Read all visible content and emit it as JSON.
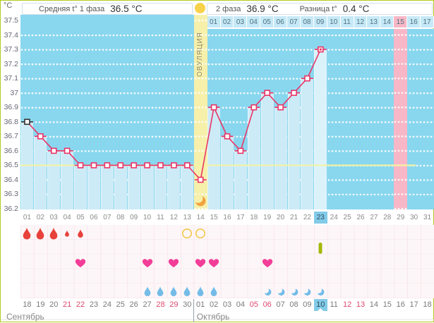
{
  "header": {
    "unit_label": "°C",
    "phase1_label": "Средняя t° 1 фаза",
    "phase1_value": "36.5 °C",
    "phase2_label": "2 фаза",
    "phase2_value": "36.9 °C",
    "diff_label": "Разница t°",
    "diff_value": "0.4 °C"
  },
  "ovulation_band": {
    "label": "ОВУЛЯЦИЯ",
    "cycle_day": 14
  },
  "chart_data": {
    "type": "line",
    "title": "Basal body temperature by cycle day",
    "ylabel": "°C",
    "ylim": [
      36.2,
      37.5
    ],
    "ytick_step": 0.1,
    "grid": true,
    "coverline": 36.5,
    "cycle_days": [
      1,
      2,
      3,
      4,
      5,
      6,
      7,
      8,
      9,
      10,
      11,
      12,
      13,
      14,
      15,
      16,
      17,
      18,
      19,
      20,
      21,
      22,
      23
    ],
    "temps": [
      36.8,
      36.7,
      36.6,
      36.6,
      36.5,
      36.5,
      36.5,
      36.5,
      36.5,
      36.5,
      36.5,
      36.5,
      36.5,
      36.4,
      36.9,
      36.7,
      36.6,
      36.9,
      37.0,
      36.9,
      37.0,
      37.1,
      37.3
    ],
    "ovulation_cycle_day": 14,
    "predicted_period_cycle_day": 29,
    "current_cycle_day": 23,
    "phase2_day_labels": [
      "01",
      "02",
      "03",
      "04",
      "05",
      "06",
      "07",
      "08",
      "09",
      "10",
      "11",
      "12",
      "13",
      "14",
      "15",
      "16",
      "17"
    ],
    "phase2_period_day_label": "15"
  },
  "bottom": {
    "cycle_day_labels": [
      "01",
      "02",
      "03",
      "04",
      "05",
      "06",
      "07",
      "08",
      "09",
      "10",
      "11",
      "12",
      "13",
      "14",
      "15",
      "16",
      "17",
      "18",
      "19",
      "20",
      "21",
      "22",
      "23",
      "24",
      "25",
      "26",
      "27",
      "28",
      "29",
      "30",
      "31"
    ],
    "menstruation_days": [
      {
        "day": 1,
        "size": "large"
      },
      {
        "day": 2,
        "size": "large"
      },
      {
        "day": 3,
        "size": "large"
      },
      {
        "day": 4,
        "size": "small"
      },
      {
        "day": 5,
        "size": "medium"
      }
    ],
    "ovulation_test_days": [
      13,
      14
    ],
    "medication_day": 23,
    "intimacy_days": [
      5,
      10,
      12,
      14,
      15,
      19
    ],
    "discharge_days": [
      10,
      11,
      12,
      13,
      14,
      15
    ],
    "discharge_light_days": [
      19,
      20,
      21,
      22,
      23
    ],
    "dates": [
      {
        "label": "18",
        "weekend": false,
        "today": false
      },
      {
        "label": "19",
        "weekend": false,
        "today": false
      },
      {
        "label": "20",
        "weekend": false,
        "today": false
      },
      {
        "label": "21",
        "weekend": true,
        "today": false
      },
      {
        "label": "22",
        "weekend": true,
        "today": false
      },
      {
        "label": "23",
        "weekend": false,
        "today": false
      },
      {
        "label": "24",
        "weekend": false,
        "today": false
      },
      {
        "label": "25",
        "weekend": false,
        "today": false
      },
      {
        "label": "26",
        "weekend": false,
        "today": false
      },
      {
        "label": "27",
        "weekend": false,
        "today": false
      },
      {
        "label": "28",
        "weekend": true,
        "today": false
      },
      {
        "label": "29",
        "weekend": true,
        "today": false
      },
      {
        "label": "30",
        "weekend": false,
        "today": false
      },
      {
        "label": "01",
        "weekend": false,
        "today": false
      },
      {
        "label": "02",
        "weekend": false,
        "today": false
      },
      {
        "label": "03",
        "weekend": false,
        "today": false
      },
      {
        "label": "04",
        "weekend": false,
        "today": false
      },
      {
        "label": "05",
        "weekend": true,
        "today": false
      },
      {
        "label": "06",
        "weekend": true,
        "today": false
      },
      {
        "label": "07",
        "weekend": false,
        "today": false
      },
      {
        "label": "08",
        "weekend": false,
        "today": false
      },
      {
        "label": "09",
        "weekend": false,
        "today": false
      },
      {
        "label": "10",
        "weekend": false,
        "today": true
      },
      {
        "label": "11",
        "weekend": false,
        "today": false
      },
      {
        "label": "12",
        "weekend": true,
        "today": false
      },
      {
        "label": "13",
        "weekend": true,
        "today": false
      },
      {
        "label": "14",
        "weekend": false,
        "today": false
      },
      {
        "label": "15",
        "weekend": false,
        "today": false
      },
      {
        "label": "16",
        "weekend": false,
        "today": false
      },
      {
        "label": "17",
        "weekend": false,
        "today": false
      },
      {
        "label": "18",
        "weekend": false,
        "today": false
      }
    ],
    "months": [
      {
        "name": "Сентябрь",
        "at_cycle_day": 1
      },
      {
        "name": "Октябрь",
        "at_cycle_day": 14
      }
    ]
  },
  "colors": {
    "line": "#ea3566",
    "first_marker": "#333333",
    "chart_blue": "#89d7ef",
    "fill_blue": "#cdebf7",
    "fill_today": "#dbf2fb",
    "ovulation_band": "#f6f0ab",
    "period_band": "#f8b7c6",
    "coverline": "#f3f39e",
    "day_cell": "#c6e9f7",
    "highlight": "#82cbe9",
    "heart": "#f23e98",
    "blood_drop": "#e8403a",
    "water_drop": "#74bce8",
    "test_ring": "#f2c84a",
    "pill": "#a3b807",
    "sun": "#f8d14b",
    "moon": "#f2a23d",
    "weekend_date": "#e0486e",
    "frame": "#b2cb1f"
  }
}
